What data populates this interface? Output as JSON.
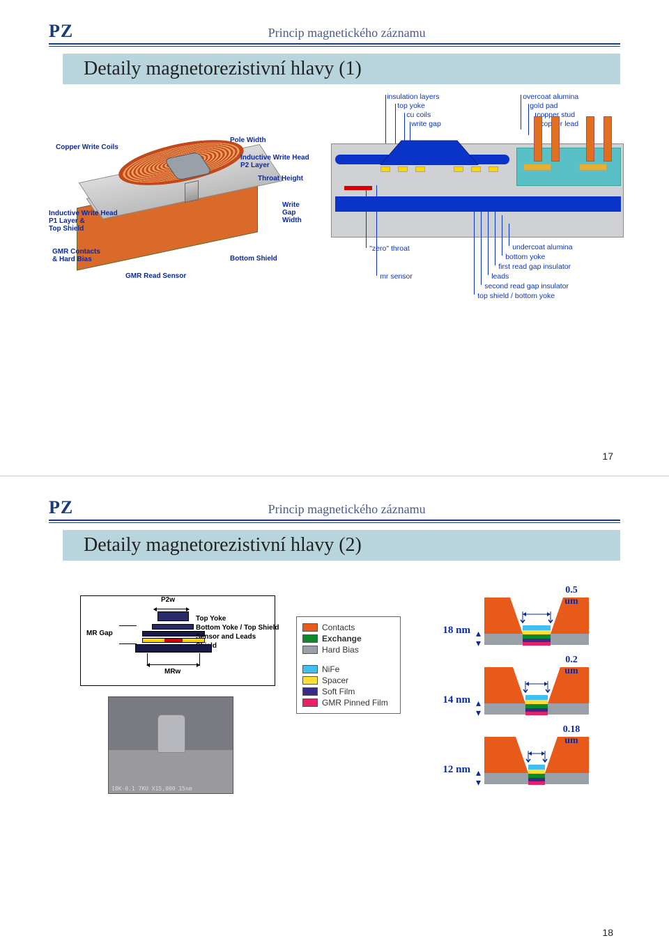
{
  "slide1": {
    "logo": "PZ",
    "subtitle": "Princip magnetického záznamu",
    "title": "Detaily magnetorezistivní hlavy (1)",
    "page": "17",
    "left_labels": {
      "cwc": "Copper Write Coils",
      "pw": "Pole Width",
      "iwh": "Inductive Write Head\nP2 Layer",
      "th": "Throat Height",
      "iwh2": "Inductive Write Head\nP1 Layer &\nTop Shield",
      "wgw": "Write\nGap\nWidth",
      "gmrc": "GMR Contacts\n& Hard Bias",
      "grs": "GMR Read Sensor",
      "bs": "Bottom Shield"
    },
    "right_top_labels": [
      "insulation layers",
      "top yoke",
      "cu coils",
      "write gap"
    ],
    "right_top_labels_r": [
      "overcoat alumina",
      "gold pad",
      "copper stud",
      "copper lead"
    ],
    "right_bot_labels_l": [
      "\"zero\" throat",
      "mr sensor"
    ],
    "right_bot_labels_r": [
      "undercoat alumina",
      "bottom yoke",
      "first read gap insulator",
      "leads",
      "second read gap insulator",
      "top shield / bottom yoke"
    ]
  },
  "slide2": {
    "logo": "PZ",
    "subtitle": "Princip magnetického záznamu",
    "title": "Detaily magnetorezistivní hlavy (2)",
    "page": "18",
    "schematic": {
      "p2w": "P2w",
      "mrgap": "MR Gap",
      "mrw": "MRw",
      "layers": [
        "Top Yoke",
        "Bottom Yoke / Top Shield",
        "Sensor and Leads",
        "Shield"
      ]
    },
    "legend": [
      {
        "color": "#e85a1a",
        "label": "Contacts"
      },
      {
        "color": "#0a8a2a",
        "label": "Exchange",
        "bold": true
      },
      {
        "color": "#9aa0a8",
        "label": "Hard Bias"
      },
      {
        "gap": true
      },
      {
        "color": "#40c0f0",
        "label": "NiFe"
      },
      {
        "color": "#ffe030",
        "label": "Spacer"
      },
      {
        "color": "#3a2a8a",
        "label": "Soft Film"
      },
      {
        "color": "#e8206a",
        "label": "GMR Pinned Film"
      }
    ],
    "stacks": [
      {
        "dim": "18 nm",
        "width": "0.5\num"
      },
      {
        "dim": "14 nm",
        "width": "0.2\num"
      },
      {
        "dim": "12 nm",
        "width": "0.18\num"
      }
    ],
    "colors": {
      "contact": "#e85a1a",
      "hardbias": "#9aa0a8",
      "nife": "#40c0f0",
      "spacer": "#ffe030",
      "soft": "#3a2a8a",
      "pinned": "#e8206a",
      "exch": "#0a8a2a"
    }
  }
}
